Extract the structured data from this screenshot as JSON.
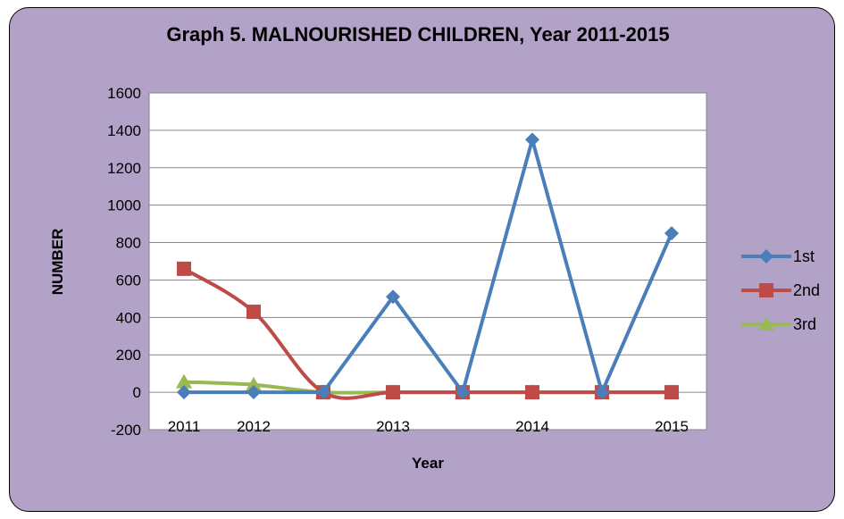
{
  "chart_data": {
    "type": "line",
    "title": "Graph 5. MALNOURISHED CHILDREN, Year 2011-2015",
    "xlabel": "Year",
    "ylabel": "NUMBER",
    "ylim": [
      -200,
      1600
    ],
    "yticks": [
      -200,
      0,
      200,
      400,
      600,
      800,
      1000,
      1200,
      1400,
      1600
    ],
    "categories": [
      "2011",
      "2012",
      "",
      "2013",
      "",
      "2014",
      "",
      "2015"
    ],
    "grid": true,
    "legend_position": "right",
    "series": [
      {
        "name": "1st",
        "color": "#4a7ebb",
        "marker": "diamond",
        "values": [
          0,
          0,
          0,
          510,
          0,
          1350,
          0,
          850
        ]
      },
      {
        "name": "2nd",
        "color": "#be4b48",
        "marker": "square",
        "values": [
          660,
          430,
          0,
          0,
          0,
          0,
          0,
          0
        ]
      },
      {
        "name": "3rd",
        "color": "#98b954",
        "marker": "triangle",
        "values": [
          55,
          40,
          0,
          0,
          0,
          0,
          0,
          0
        ]
      }
    ]
  }
}
